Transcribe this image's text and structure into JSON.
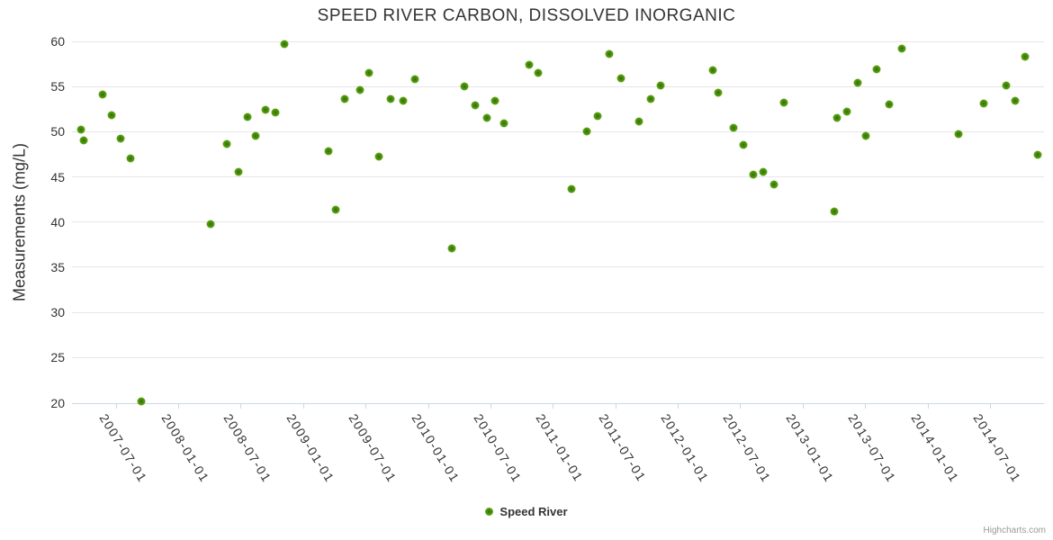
{
  "credits": "Highcharts.com",
  "legend": {
    "series_label": "Speed River"
  },
  "colors": {
    "marker_green": "#5f9e14",
    "marker_center": "#2f6d05",
    "grid": "#e6e6e6",
    "axis_line": "#ccd6eb",
    "text": "#333333",
    "credits_gray": "#999999",
    "background": "#ffffff"
  },
  "chart_data": {
    "type": "scatter",
    "title": "SPEED RIVER CARBON, DISSOLVED INORGANIC",
    "xlabel": "",
    "ylabel": "Measurements (mg/L)",
    "ylim": [
      20,
      60
    ],
    "y_ticks": [
      20,
      25,
      30,
      35,
      40,
      45,
      50,
      55,
      60
    ],
    "x_ticks": [
      "2007-07-01",
      "2008-01-01",
      "2008-07-01",
      "2009-01-01",
      "2009-07-01",
      "2010-01-01",
      "2010-07-01",
      "2011-01-01",
      "2011-07-01",
      "2012-01-01",
      "2012-07-01",
      "2013-01-01",
      "2013-07-01",
      "2014-01-01",
      "2014-07-01"
    ],
    "x_range": [
      "2007-02-25",
      "2014-12-07"
    ],
    "grid": true,
    "legend_position": "bottom-center",
    "series": [
      {
        "name": "Speed River",
        "color": "#5f9e14",
        "points": [
          [
            "2007-03-22",
            50.2
          ],
          [
            "2007-03-30",
            49.0
          ],
          [
            "2007-05-24",
            54.1
          ],
          [
            "2007-06-20",
            51.8
          ],
          [
            "2007-07-16",
            49.2
          ],
          [
            "2007-08-14",
            47.0
          ],
          [
            "2007-09-15",
            20.1
          ],
          [
            "2008-04-03",
            39.8
          ],
          [
            "2008-05-20",
            48.6
          ],
          [
            "2008-06-26",
            45.6
          ],
          [
            "2008-07-20",
            51.6
          ],
          [
            "2008-08-13",
            49.5
          ],
          [
            "2008-09-14",
            52.4
          ],
          [
            "2008-10-10",
            52.1
          ],
          [
            "2008-11-06",
            59.7
          ],
          [
            "2009-03-14",
            47.8
          ],
          [
            "2009-04-05",
            41.4
          ],
          [
            "2009-05-01",
            53.6
          ],
          [
            "2009-06-15",
            54.6
          ],
          [
            "2009-07-11",
            56.5
          ],
          [
            "2009-08-09",
            47.2
          ],
          [
            "2009-09-13",
            53.6
          ],
          [
            "2009-10-20",
            53.4
          ],
          [
            "2009-11-23",
            55.8
          ],
          [
            "2010-03-10",
            37.1
          ],
          [
            "2010-04-17",
            55.0
          ],
          [
            "2010-05-18",
            52.9
          ],
          [
            "2010-06-22",
            51.5
          ],
          [
            "2010-07-15",
            53.4
          ],
          [
            "2010-08-11",
            50.9
          ],
          [
            "2010-10-24",
            57.4
          ],
          [
            "2010-11-20",
            56.5
          ],
          [
            "2011-02-26",
            43.7
          ],
          [
            "2011-04-08",
            50.0
          ],
          [
            "2011-05-09",
            51.7
          ],
          [
            "2011-06-15",
            58.6
          ],
          [
            "2011-07-17",
            55.9
          ],
          [
            "2011-09-09",
            51.1
          ],
          [
            "2011-10-13",
            53.6
          ],
          [
            "2011-11-11",
            55.1
          ],
          [
            "2012-04-12",
            56.8
          ],
          [
            "2012-04-28",
            54.3
          ],
          [
            "2012-06-11",
            50.4
          ],
          [
            "2012-07-10",
            48.5
          ],
          [
            "2012-08-09",
            45.3
          ],
          [
            "2012-09-07",
            45.6
          ],
          [
            "2012-10-09",
            44.2
          ],
          [
            "2012-11-07",
            53.2
          ],
          [
            "2013-04-03",
            41.2
          ],
          [
            "2013-04-11",
            51.5
          ],
          [
            "2013-05-10",
            52.2
          ],
          [
            "2013-06-11",
            55.4
          ],
          [
            "2013-07-02",
            49.5
          ],
          [
            "2013-08-05",
            56.9
          ],
          [
            "2013-09-12",
            53.0
          ],
          [
            "2013-10-18",
            59.2
          ],
          [
            "2014-03-30",
            49.7
          ],
          [
            "2014-06-12",
            53.1
          ],
          [
            "2014-08-18",
            55.1
          ],
          [
            "2014-09-13",
            53.4
          ],
          [
            "2014-10-12",
            58.3
          ],
          [
            "2014-11-18",
            47.4
          ]
        ]
      }
    ]
  }
}
